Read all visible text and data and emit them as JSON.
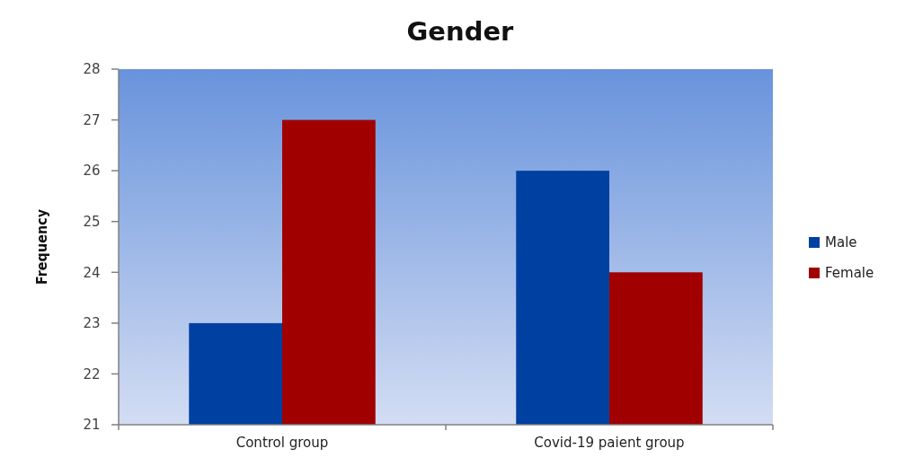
{
  "chart_data": {
    "type": "bar",
    "title": "Gender",
    "ylabel": "Frequency",
    "categories": [
      "Control group",
      "Covid-19 paient group"
    ],
    "series": [
      {
        "name": "Male",
        "color": "#0040a0",
        "values": [
          23,
          26
        ]
      },
      {
        "name": "Female",
        "color": "#a00000",
        "values": [
          27,
          24
        ]
      }
    ],
    "ylim": [
      21,
      28
    ],
    "yticks": [
      21,
      22,
      23,
      24,
      25,
      26,
      27,
      28
    ],
    "grid": false,
    "legend": "right"
  }
}
